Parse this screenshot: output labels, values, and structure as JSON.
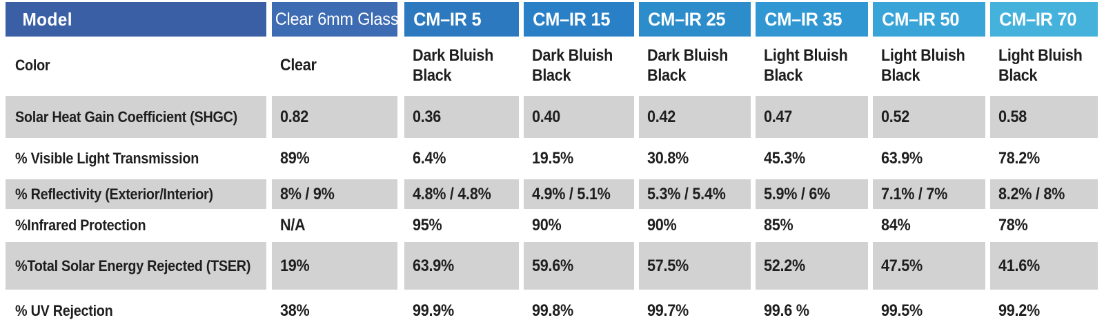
{
  "header": {
    "model": "Model",
    "model_bg": "#3A5FA5",
    "products": [
      {
        "label": "Clear 6mm Glass",
        "bg": "#3E6CB2"
      },
      {
        "label": "CM–IR 5",
        "bg": "#2C79BF"
      },
      {
        "label": "CM–IR 15",
        "bg": "#2A80C6"
      },
      {
        "label": "CM–IR 25",
        "bg": "#2D8DCB"
      },
      {
        "label": "CM–IR 35",
        "bg": "#3097D2"
      },
      {
        "label": "CM–IR 50",
        "bg": "#39A4D8"
      },
      {
        "label": "CM–IR 70",
        "bg": "#45B2DC"
      }
    ]
  },
  "rows": [
    {
      "label": "Color",
      "shaded": false,
      "values": [
        "Clear",
        "Dark Bluish Black",
        "Dark Bluish Black",
        "Dark Bluish Black",
        "Light Bluish Black",
        "Light Bluish Black",
        "Light Bluish Black"
      ]
    },
    {
      "label": "Solar Heat Gain Coefficient (SHGC)",
      "shaded": true,
      "values": [
        "0.82",
        "0.36",
        "0.40",
        "0.42",
        "0.47",
        "0.52",
        "0.58"
      ]
    },
    {
      "label": "% Visible Light Transmission",
      "shaded": false,
      "values": [
        "89%",
        "6.4%",
        "19.5%",
        "30.8%",
        "45.3%",
        "63.9%",
        "78.2%"
      ]
    },
    {
      "label": "% Reflectivity (Exterior/Interior)",
      "shaded": true,
      "values": [
        "8% / 9%",
        "4.8% / 4.8%",
        "4.9% / 5.1%",
        "5.3% / 5.4%",
        "5.9% / 6%",
        "7.1% / 7%",
        "8.2% / 8%"
      ]
    },
    {
      "label": "%Infrared Protection",
      "shaded": false,
      "values": [
        "N/A",
        "95%",
        "90%",
        "90%",
        "85%",
        "84%",
        "78%"
      ]
    },
    {
      "label": "%Total Solar Energy Rejected (TSER)",
      "shaded": true,
      "values": [
        "19%",
        "63.9%",
        "59.6%",
        "57.5%",
        "52.2%",
        "47.5%",
        "41.6%"
      ]
    },
    {
      "label": "% UV Rejection",
      "shaded": false,
      "values": [
        "38%",
        "99.9%",
        "99.8%",
        "99.7%",
        "99.6 %",
        "99.5%",
        "99.2%"
      ]
    }
  ],
  "colors": {
    "shaded_row_bg": "#D2D2D2",
    "text": "#1E1E1E",
    "header_text": "#FFFFFF"
  }
}
